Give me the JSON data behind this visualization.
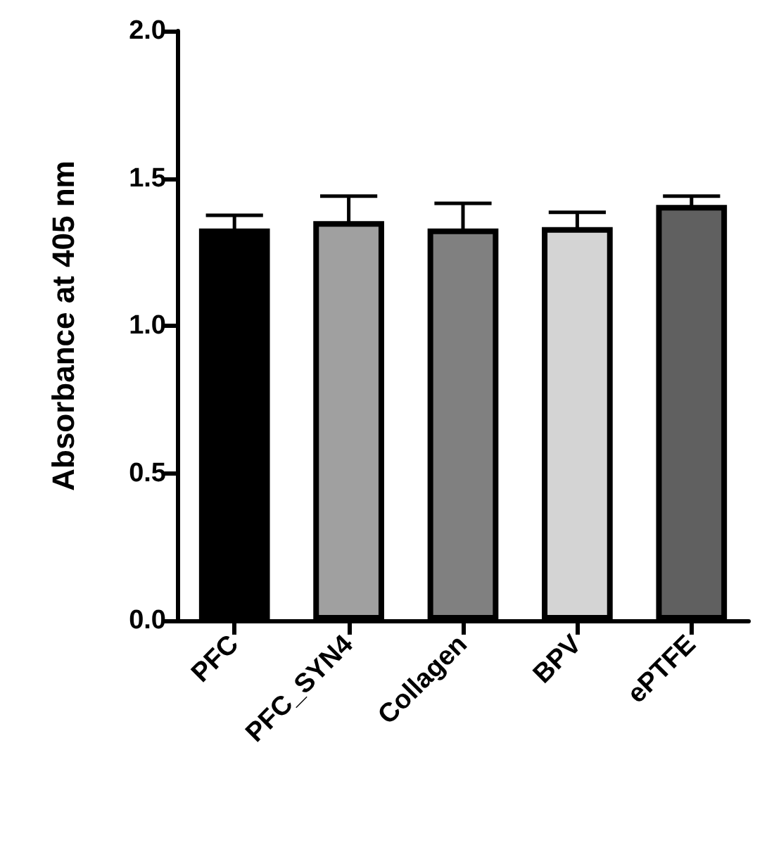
{
  "chart_data": {
    "type": "bar",
    "ylabel": "Absorbance at 405 nm",
    "categories": [
      "PFC",
      "PFC_SYN4",
      "Collagen",
      "BPV",
      "ePTFE"
    ],
    "values": [
      1.33,
      1.355,
      1.33,
      1.335,
      1.41
    ],
    "colors": [
      "#000000",
      "#a0a0a0",
      "#808080",
      "#d4d4d4",
      "#606060"
    ],
    "errors": [
      0.045,
      0.085,
      0.085,
      0.05,
      0.03
    ],
    "ylim": [
      0,
      2
    ],
    "yticks": [
      {
        "value": 0,
        "label": "0.0"
      },
      0.5,
      {
        "value": 1,
        "label": "1.0"
      },
      1.5,
      {
        "value": 2,
        "label": "2.0"
      }
    ],
    "grid": false
  }
}
